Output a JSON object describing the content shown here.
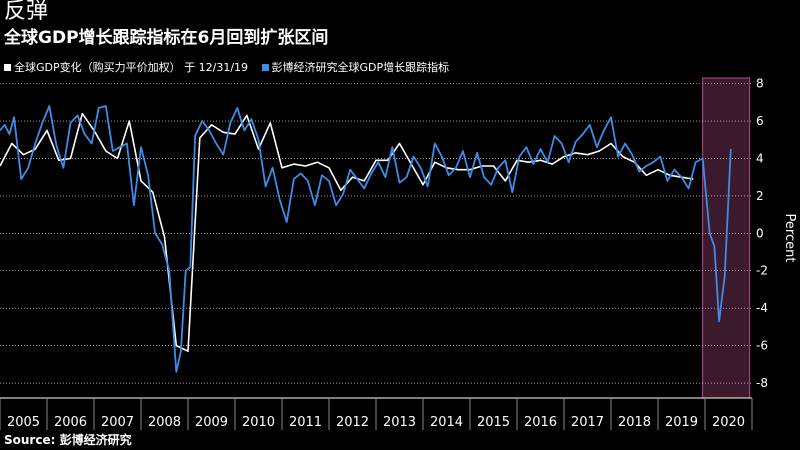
{
  "header": {
    "title": "反弹",
    "subtitle": "全球GDP增长跟踪指标在6月回到扩张区间"
  },
  "legend": {
    "items": [
      {
        "label": "全球GDP变化（购买力平价加权） 于 12/31/19",
        "color": "#ffffff"
      },
      {
        "label": "彭博经济研究全球GDP增长跟踪指标",
        "color": "#3f8be8"
      }
    ]
  },
  "source": "Source: 彭博经济研究",
  "colors": {
    "background": "#000000",
    "white_series": "#ffffff",
    "blue_series": "#3f8be8",
    "highlight_fill": "#3a1a2c",
    "highlight_stroke": "#c0468f",
    "grid": "#ffffff"
  },
  "chart_data": {
    "type": "line",
    "ylabel": "Percent",
    "ylim": [
      -8.8,
      8.3
    ],
    "yticks": [
      -8,
      -6,
      -4,
      -2,
      0,
      2,
      4,
      6,
      8
    ],
    "ytick_labels": [
      "-8",
      "-6",
      "-4",
      "-2",
      "0",
      "2",
      "4",
      "6",
      "8"
    ],
    "xlim": [
      2005,
      2021
    ],
    "xtick_labels": [
      "2005",
      "2006",
      "2007",
      "2008",
      "2009",
      "2010",
      "2011",
      "2012",
      "2013",
      "2014",
      "2015",
      "2016",
      "2017",
      "2018",
      "2019",
      "2020"
    ],
    "grid": true,
    "highlight_range": [
      2019.95,
      2020.95
    ],
    "series": [
      {
        "name": "全球GDP变化（购买力平价加权） 于 12/31/19",
        "color": "#ffffff",
        "x": [
          2005.0,
          2005.25,
          2005.5,
          2005.75,
          2006.0,
          2006.25,
          2006.5,
          2006.75,
          2007.0,
          2007.25,
          2007.5,
          2007.75,
          2008.0,
          2008.25,
          2008.5,
          2008.75,
          2009.0,
          2009.25,
          2009.5,
          2009.75,
          2010.0,
          2010.25,
          2010.5,
          2010.75,
          2011.0,
          2011.25,
          2011.5,
          2011.75,
          2012.0,
          2012.25,
          2012.5,
          2012.75,
          2013.0,
          2013.25,
          2013.5,
          2013.75,
          2014.0,
          2014.25,
          2014.5,
          2014.75,
          2015.0,
          2015.25,
          2015.5,
          2015.75,
          2016.0,
          2016.25,
          2016.5,
          2016.75,
          2017.0,
          2017.25,
          2017.5,
          2017.75,
          2018.0,
          2018.25,
          2018.5,
          2018.75,
          2019.0,
          2019.25,
          2019.5,
          2019.75
        ],
        "values": [
          3.6,
          4.8,
          4.2,
          4.5,
          5.5,
          3.9,
          4.0,
          6.4,
          5.5,
          4.4,
          4.0,
          6.0,
          2.8,
          2.2,
          -0.2,
          -6.0,
          -6.3,
          5.1,
          5.8,
          5.4,
          5.3,
          6.3,
          4.5,
          5.9,
          3.5,
          3.7,
          3.6,
          3.8,
          3.5,
          2.3,
          3.0,
          2.8,
          3.9,
          3.9,
          4.8,
          3.7,
          2.6,
          3.8,
          3.5,
          3.4,
          3.4,
          3.6,
          3.6,
          2.8,
          3.9,
          3.8,
          3.9,
          3.7,
          4.1,
          4.3,
          4.2,
          4.4,
          4.8,
          4.1,
          3.8,
          3.1,
          3.4,
          3.1,
          3.0,
          2.9
        ]
      },
      {
        "name": "彭博经济研究全球GDP增长跟踪指标",
        "color": "#3f8be8",
        "x": [
          2005.0,
          2005.1,
          2005.2,
          2005.3,
          2005.45,
          2005.6,
          2005.75,
          2005.9,
          2006.05,
          2006.2,
          2006.35,
          2006.5,
          2006.65,
          2006.8,
          2006.95,
          2007.1,
          2007.25,
          2007.4,
          2007.55,
          2007.7,
          2007.85,
          2008.0,
          2008.15,
          2008.3,
          2008.45,
          2008.6,
          2008.75,
          2008.85,
          2008.95,
          2009.05,
          2009.15,
          2009.3,
          2009.45,
          2009.6,
          2009.75,
          2009.9,
          2010.05,
          2010.2,
          2010.35,
          2010.5,
          2010.65,
          2010.8,
          2010.95,
          2011.1,
          2011.25,
          2011.4,
          2011.55,
          2011.7,
          2011.85,
          2012.0,
          2012.15,
          2012.3,
          2012.45,
          2012.6,
          2012.75,
          2012.9,
          2013.05,
          2013.2,
          2013.35,
          2013.5,
          2013.65,
          2013.8,
          2013.95,
          2014.1,
          2014.25,
          2014.4,
          2014.55,
          2014.7,
          2014.85,
          2015.0,
          2015.15,
          2015.3,
          2015.45,
          2015.6,
          2015.75,
          2015.9,
          2016.05,
          2016.2,
          2016.35,
          2016.5,
          2016.65,
          2016.8,
          2016.95,
          2017.1,
          2017.25,
          2017.4,
          2017.55,
          2017.7,
          2017.85,
          2018.0,
          2018.15,
          2018.3,
          2018.45,
          2018.6,
          2018.75,
          2018.9,
          2019.05,
          2019.2,
          2019.35,
          2019.5,
          2019.65,
          2019.8,
          2019.95,
          2020.1,
          2020.2,
          2020.3,
          2020.42,
          2020.55
        ],
        "values": [
          5.5,
          5.8,
          5.3,
          6.2,
          2.9,
          3.5,
          4.8,
          5.9,
          6.8,
          4.7,
          3.5,
          5.9,
          6.3,
          5.3,
          4.8,
          6.7,
          6.8,
          4.4,
          4.6,
          4.8,
          1.5,
          4.6,
          3.1,
          0.0,
          -0.6,
          -2.0,
          -7.4,
          -6.3,
          -2.0,
          -1.8,
          5.2,
          6.0,
          5.5,
          4.8,
          4.2,
          5.9,
          6.7,
          5.5,
          6.1,
          5.0,
          2.5,
          3.5,
          1.8,
          0.6,
          2.9,
          3.2,
          2.8,
          1.5,
          3.1,
          2.8,
          1.5,
          2.1,
          3.4,
          2.9,
          2.4,
          3.2,
          3.8,
          3.0,
          4.6,
          2.7,
          3.0,
          4.1,
          3.5,
          2.5,
          4.8,
          4.1,
          3.1,
          3.5,
          4.4,
          3.0,
          4.3,
          3.0,
          2.6,
          3.5,
          3.9,
          2.2,
          4.1,
          4.6,
          3.7,
          4.5,
          3.8,
          5.2,
          4.8,
          3.8,
          4.9,
          5.3,
          5.8,
          4.6,
          5.5,
          6.2,
          4.1,
          4.8,
          4.2,
          3.3,
          3.6,
          3.8,
          4.1,
          2.8,
          3.4,
          3.0,
          2.4,
          3.8,
          4.0,
          0.0,
          -0.7,
          -4.7,
          -2.3,
          4.5
        ]
      }
    ]
  }
}
